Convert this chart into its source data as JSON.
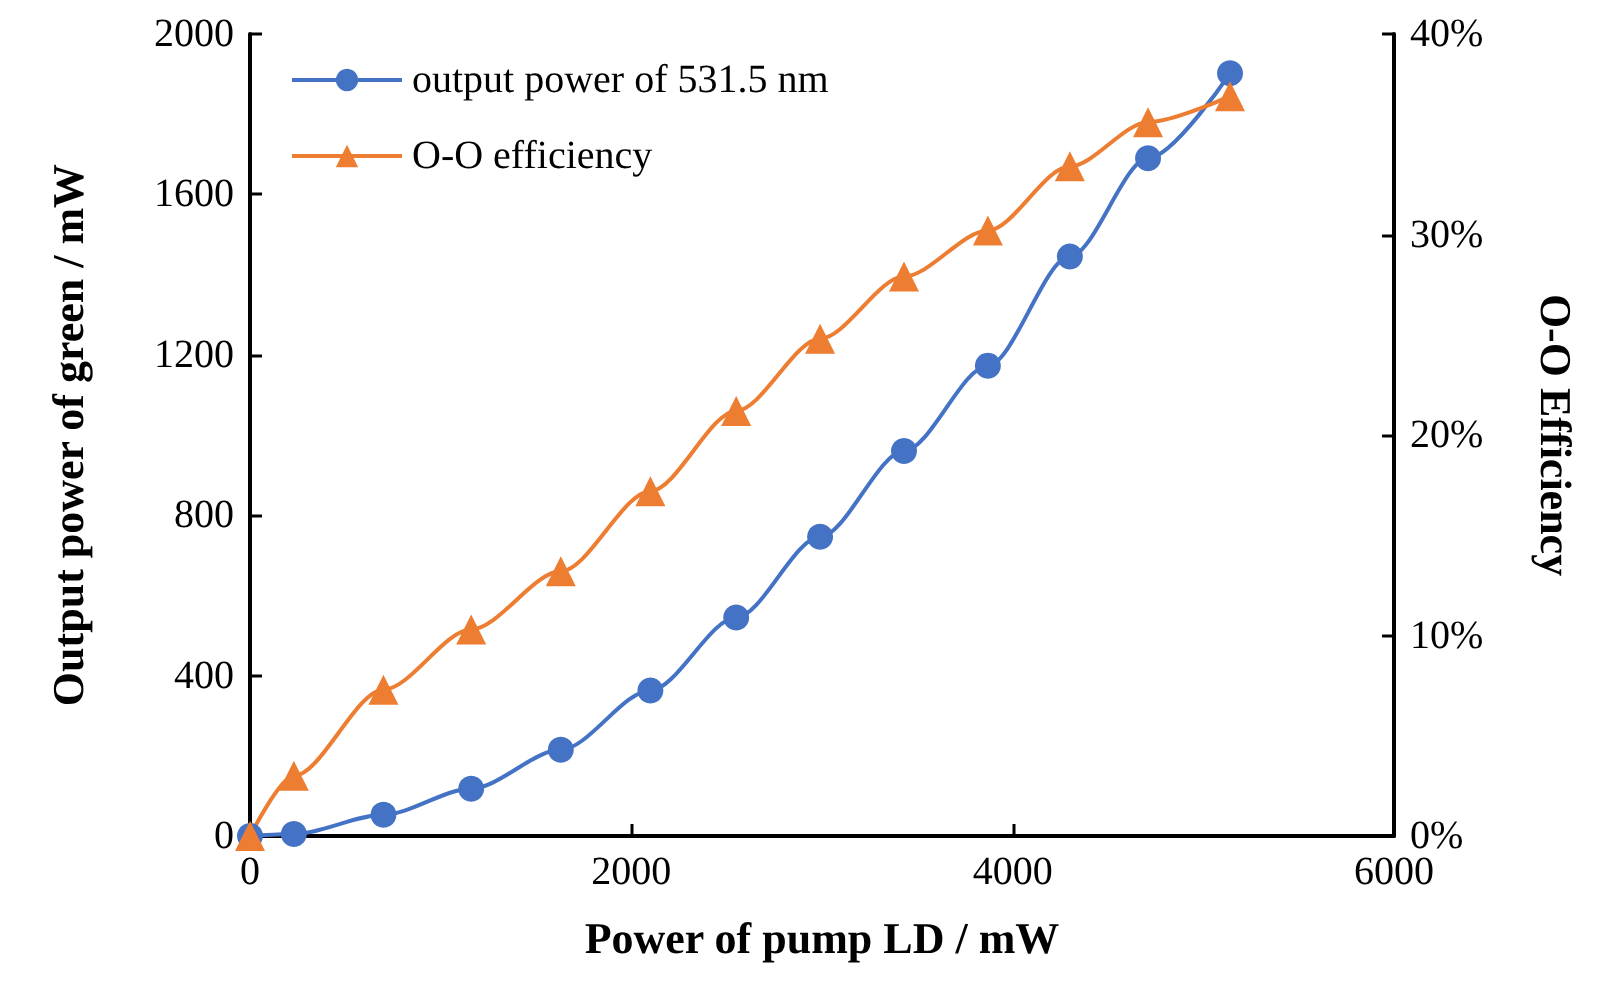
{
  "chart_data": {
    "type": "line",
    "xlabel": "Power of pump LD / mW",
    "ylabel": "Output power of green / mW",
    "y2label": "O-O Efficiency",
    "x": [
      0,
      230,
      700,
      1160,
      1630,
      2100,
      2550,
      2990,
      3430,
      3870,
      4300,
      4710,
      5140
    ],
    "series": [
      {
        "name": "output power of 531.5 nm",
        "color": "#4472c4",
        "marker": "circle",
        "values": [
          0,
          5,
          53,
          118,
          215,
          363,
          545,
          746,
          960,
          1173,
          1445,
          1690,
          1902
        ]
      },
      {
        "name": "O-O efficiency",
        "color": "#ed7d31",
        "marker": "triangle",
        "axis": "y2",
        "values": [
          0,
          3.0,
          7.3,
          10.3,
          13.2,
          17.2,
          21.2,
          24.8,
          27.9,
          30.2,
          33.4,
          35.6,
          36.9
        ]
      }
    ],
    "xlim": [
      0,
      6000
    ],
    "xticks": [
      0,
      2000,
      4000,
      6000
    ],
    "ylim": [
      0,
      2000
    ],
    "yticks": [
      0,
      400,
      800,
      1200,
      1600,
      2000
    ],
    "y2lim": [
      0,
      40
    ],
    "y2ticks": [
      {
        "value": 0,
        "label": "0%"
      },
      {
        "value": 10,
        "label": "10%"
      },
      {
        "value": 20,
        "label": "20%"
      },
      {
        "value": 30,
        "label": "30%"
      },
      {
        "value": 40,
        "label": "40%"
      }
    ],
    "grid": false,
    "legend": "top left",
    "line_style": "solid"
  }
}
